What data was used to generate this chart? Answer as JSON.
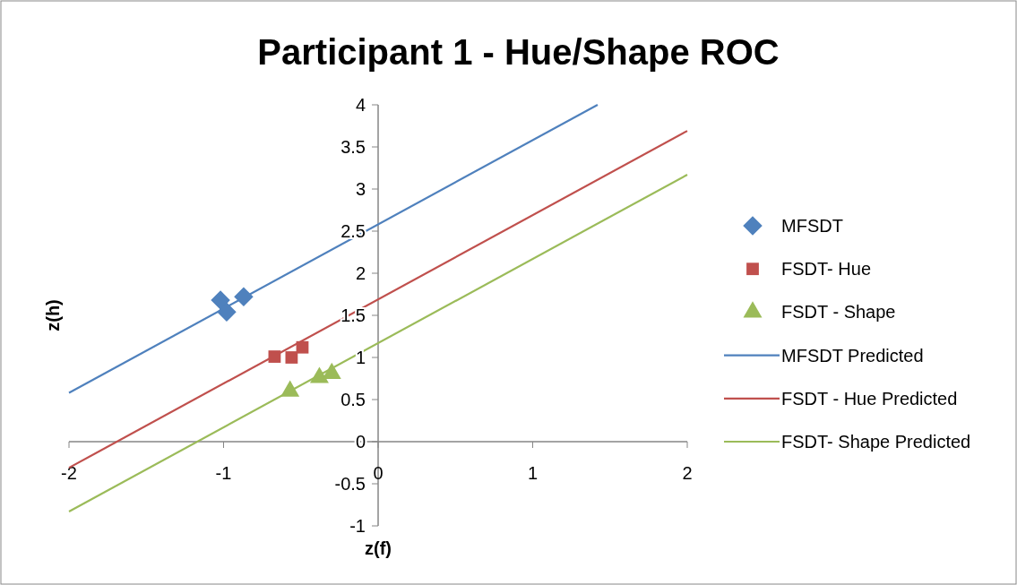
{
  "chart_data": {
    "type": "scatter",
    "title": "Participant 1 - Hue/Shape ROC",
    "xlabel": "z(f)",
    "ylabel": "z(h)",
    "xlim": [
      -2,
      2
    ],
    "ylim": [
      -1,
      4
    ],
    "xticks": [
      -2,
      -1,
      0,
      1,
      2
    ],
    "yticks": [
      -1,
      -0.5,
      0,
      0.5,
      1,
      1.5,
      2,
      2.5,
      3,
      3.5,
      4
    ],
    "grid": false,
    "legend": "right",
    "series": [
      {
        "name": "MFSDT",
        "marker": "diamond",
        "color": "#4f81bd",
        "x": [
          -1.02,
          -0.98,
          -0.87
        ],
        "values": [
          1.68,
          1.54,
          1.72
        ]
      },
      {
        "name": "FSDT- Hue",
        "marker": "square",
        "color": "#c0504d",
        "x": [
          -0.67,
          -0.56,
          -0.49
        ],
        "values": [
          1.01,
          1.0,
          1.12
        ]
      },
      {
        "name": "FSDT - Shape",
        "marker": "triangle",
        "color": "#9bbb59",
        "x": [
          -0.57,
          -0.38,
          -0.3
        ],
        "values": [
          0.6,
          0.76,
          0.81
        ]
      },
      {
        "name": "MFSDT Predicted",
        "type": "line",
        "marker": "none",
        "color": "#4f81bd",
        "x": [
          -2,
          1.42
        ],
        "values": [
          0.58,
          4
        ]
      },
      {
        "name": "FSDT - Hue Predicted",
        "type": "line",
        "marker": "none",
        "color": "#c0504d",
        "x": [
          -2,
          2
        ],
        "values": [
          -0.31,
          3.69
        ]
      },
      {
        "name": "FSDT- Shape Predicted",
        "type": "line",
        "marker": "none",
        "color": "#9bbb59",
        "x": [
          -2,
          2
        ],
        "values": [
          -0.83,
          3.17
        ]
      }
    ]
  }
}
